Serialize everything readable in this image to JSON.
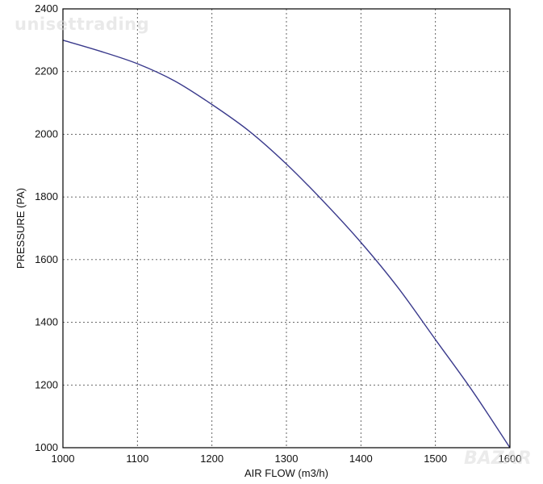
{
  "watermarks": {
    "top": "unisettrading",
    "bottom": "BAZAR"
  },
  "colors": {
    "curve": "#3a3a8c",
    "grid": "#555555",
    "frame": "#000000"
  },
  "chart_data": {
    "type": "line",
    "title": "",
    "xlabel": "AIR FLOW (m3/h)",
    "ylabel": "PRESSURE (PA)",
    "xlim": [
      1000,
      1600
    ],
    "ylim": [
      1000,
      2400
    ],
    "xticks": [
      1000,
      1100,
      1200,
      1300,
      1400,
      1500,
      1600
    ],
    "yticks": [
      1000,
      1200,
      1400,
      1600,
      1800,
      2000,
      2200,
      2400
    ],
    "grid": true,
    "series": [
      {
        "x": [
          1000,
          1050,
          1100,
          1150,
          1200,
          1250,
          1300,
          1350,
          1400,
          1450,
          1500,
          1550,
          1600
        ],
        "y": [
          2300,
          2265,
          2225,
          2170,
          2095,
          2010,
          1905,
          1785,
          1655,
          1510,
          1345,
          1180,
          1000
        ]
      }
    ]
  }
}
